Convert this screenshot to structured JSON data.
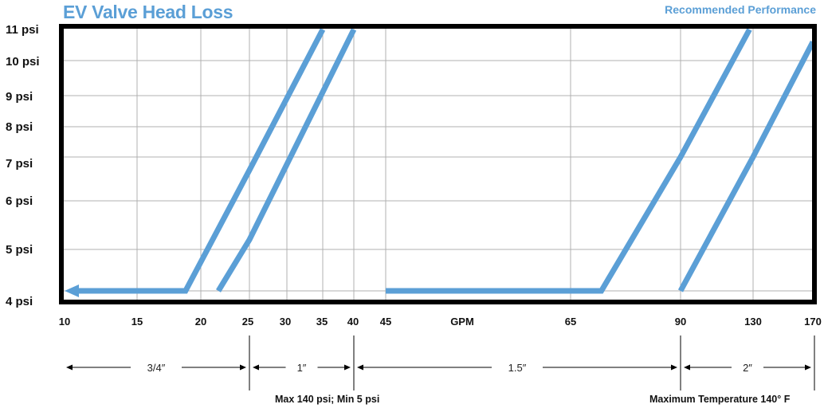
{
  "chart_data": {
    "type": "line",
    "title": "EV Valve Head Loss",
    "subtitle": "Recommended Performance",
    "xlabel": "GPM",
    "x_ticks": [
      "10",
      "15",
      "20",
      "25",
      "30",
      "35",
      "40",
      "45",
      "65",
      "90",
      "130",
      "170"
    ],
    "y_ticks": [
      "4 psi",
      "5 psi",
      "6 psi",
      "7 psi",
      "8 psi",
      "9 psi",
      "10 psi",
      "11 psi"
    ],
    "grid": true,
    "colors": {
      "series": "#5b9fd6",
      "frame": "#000000",
      "grid": "#b0b0b0"
    },
    "series": [
      {
        "points": [
          [
            10,
            4.2
          ],
          [
            18.8,
            4.2
          ],
          [
            25,
            6.7
          ],
          [
            35,
            11.0
          ]
        ],
        "arrow_start": true
      },
      {
        "points": [
          [
            21.8,
            4.2
          ],
          [
            25,
            5.2
          ],
          [
            40,
            11.0
          ]
        ]
      },
      {
        "points": [
          [
            45,
            4.2
          ],
          [
            72,
            4.2
          ],
          [
            90,
            7.0
          ],
          [
            128,
            11.0
          ]
        ]
      },
      {
        "points": [
          [
            90,
            4.2
          ],
          [
            130,
            7.0
          ],
          [
            170,
            10.6
          ]
        ]
      }
    ],
    "size_ranges": [
      {
        "label": "3/4″",
        "from": "10",
        "to": "25"
      },
      {
        "label": "1″",
        "from": "25",
        "to": "40"
      },
      {
        "label": "1.5″",
        "from": "40",
        "to": "90"
      },
      {
        "label": "2″",
        "from": "90",
        "to": "170"
      }
    ]
  },
  "notes": {
    "pressure": "Max 140 psi; Min 5 psi",
    "temperature": "Maximum Temperature 140° F"
  }
}
